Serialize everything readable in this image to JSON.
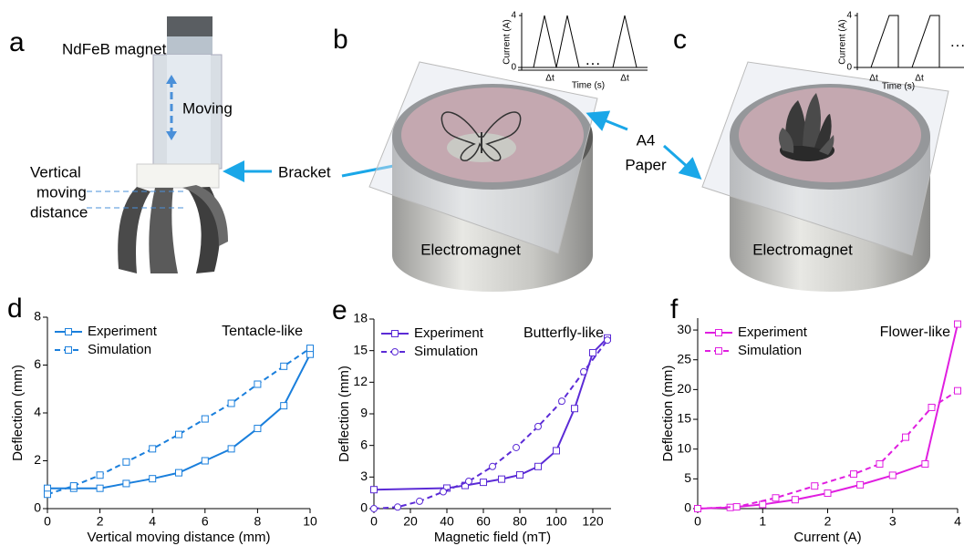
{
  "panel_a": {
    "label": "a",
    "magnet": "NdFeB magnet",
    "motion": "Moving",
    "distance_label": [
      "Vertical",
      "moving",
      "distance"
    ],
    "bracket": "Bracket"
  },
  "panel_b": {
    "label": "b",
    "inset": {
      "ylabel": "Current (A)",
      "xlabel": "Time (s)",
      "ylim": [
        0,
        4
      ],
      "yticks": [
        0,
        4
      ],
      "dt_labels": [
        "Δt",
        "Δt"
      ],
      "ellipsis": "···"
    },
    "electromagnet": "Electromagnet"
  },
  "panel_c": {
    "label": "c",
    "inset": {
      "ylabel": "Current (A)",
      "xlabel": "Time (s)",
      "ylim": [
        0,
        4
      ],
      "yticks": [
        0,
        4
      ],
      "dt_labels": [
        "Δt",
        "Δt"
      ],
      "ellipsis": "···"
    },
    "electromagnet": "Electromagnet"
  },
  "paper_label": [
    "A4",
    "Paper"
  ],
  "chart_data": [
    {
      "type": "line",
      "panel": "d",
      "annotation": "Tentacle-like",
      "xlabel": "Vertical moving distance (mm)",
      "ylabel": "Deflection (mm)",
      "xlim": [
        0,
        10
      ],
      "xticks": [
        0,
        2,
        4,
        6,
        8,
        10
      ],
      "ylim": [
        0,
        8
      ],
      "yticks": [
        0,
        2,
        4,
        6,
        8
      ],
      "series": [
        {
          "name": "Experiment",
          "color": "#1a7fdc",
          "line_style": "solid",
          "marker": "square",
          "x": [
            0,
            1,
            2,
            3,
            4,
            5,
            6,
            7,
            8,
            9,
            10
          ],
          "values": [
            0.85,
            0.85,
            0.85,
            1.05,
            1.25,
            1.5,
            2.0,
            2.5,
            3.35,
            4.3,
            6.45
          ]
        },
        {
          "name": "Simulation",
          "color": "#1a7fdc",
          "line_style": "dashed",
          "marker": "square",
          "x": [
            0,
            1,
            2,
            3,
            4,
            5,
            6,
            7,
            8,
            9,
            10
          ],
          "values": [
            0.6,
            0.95,
            1.4,
            1.95,
            2.5,
            3.1,
            3.75,
            4.4,
            5.2,
            5.95,
            6.7
          ]
        }
      ]
    },
    {
      "type": "line",
      "panel": "e",
      "annotation": "Butterfly-like",
      "xlabel": "Magnetic field (mT)",
      "ylabel": "Deflection (mm)",
      "xlim": [
        0,
        130
      ],
      "xticks": [
        0,
        20,
        40,
        60,
        80,
        100,
        120
      ],
      "ylim": [
        0,
        18
      ],
      "yticks": [
        0,
        3,
        6,
        9,
        12,
        15,
        18
      ],
      "series": [
        {
          "name": "Experiment",
          "color": "#5b2bd6",
          "line_style": "solid",
          "marker": "square",
          "x": [
            0,
            40,
            50,
            60,
            70,
            80,
            90,
            100,
            110,
            120,
            128
          ],
          "values": [
            1.8,
            1.95,
            2.2,
            2.5,
            2.8,
            3.2,
            4.0,
            5.5,
            9.5,
            14.8,
            16.2
          ]
        },
        {
          "name": "Simulation",
          "color": "#5b2bd6",
          "line_style": "dashed",
          "marker": "circle",
          "x": [
            0,
            13,
            25,
            38,
            52,
            65,
            78,
            90,
            103,
            115,
            128
          ],
          "values": [
            0,
            0.15,
            0.7,
            1.6,
            2.6,
            4.0,
            5.8,
            7.8,
            10.2,
            13.0,
            16.0
          ]
        }
      ]
    },
    {
      "type": "line",
      "panel": "f",
      "annotation": "Flower-like",
      "xlabel": "Current (A)",
      "ylabel": "Deflection (mm)",
      "xlim": [
        0,
        4
      ],
      "xticks": [
        0,
        1,
        2,
        3,
        4
      ],
      "ylim": [
        0,
        32
      ],
      "yticks": [
        0,
        5,
        10,
        15,
        20,
        25,
        30
      ],
      "series": [
        {
          "name": "Experiment",
          "color": "#e01ee0",
          "line_style": "solid",
          "marker": "square",
          "x": [
            0,
            0.5,
            1,
            1.5,
            2,
            2.5,
            3,
            3.5,
            4
          ],
          "values": [
            0,
            0.2,
            0.7,
            1.5,
            2.6,
            4.0,
            5.6,
            7.5,
            31
          ]
        },
        {
          "name": "Simulation",
          "color": "#e01ee0",
          "line_style": "dashed",
          "marker": "square",
          "x": [
            0,
            0.6,
            1.2,
            1.8,
            2.4,
            2.8,
            3.2,
            3.6,
            4
          ],
          "values": [
            0,
            0.3,
            1.8,
            3.8,
            5.8,
            7.5,
            12,
            17,
            19.8
          ]
        }
      ]
    }
  ]
}
